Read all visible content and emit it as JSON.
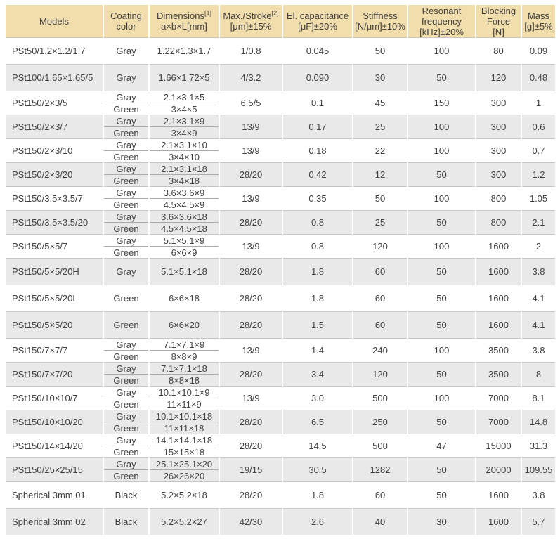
{
  "colors": {
    "header_bg": "#f2deac",
    "row_bg": "#ffffff",
    "row_alt_bg": "#e9e9e9",
    "text": "#414141",
    "group_line": "#c6c6c6",
    "subrow_line": "#aaaaaa"
  },
  "table": {
    "columns": [
      {
        "id": "models",
        "lines": [
          "Models"
        ]
      },
      {
        "id": "coating-color",
        "lines": [
          "Coating",
          "color"
        ]
      },
      {
        "id": "dimensions",
        "lines": [
          "Dimensions",
          "a×b×L[mm]"
        ],
        "sup": "[1]"
      },
      {
        "id": "max-stroke",
        "lines": [
          "Max./Stroke",
          "[μm]±15%"
        ],
        "sup": "[2]"
      },
      {
        "id": "el-capacitance",
        "lines": [
          "El. capacitance",
          "[μF]±20%"
        ]
      },
      {
        "id": "stiffness",
        "lines": [
          "Stiffness",
          "[N/μm]±10%"
        ]
      },
      {
        "id": "resonant-frequency",
        "lines": [
          "Resonant",
          "frequency",
          "[kHz]±20%"
        ]
      },
      {
        "id": "blocking-force",
        "lines": [
          "Blocking",
          "Force",
          "[N]"
        ]
      },
      {
        "id": "mass",
        "lines": [
          "Mass",
          "[g]±5%"
        ]
      }
    ],
    "rows": [
      {
        "model": "PSt50/1.2×1.2/1.7",
        "variants": [
          {
            "coating": "Gray",
            "dimensions": "1.22×1.3×1.7"
          }
        ],
        "stroke": "1/0.8",
        "capacitance": "0.045",
        "stiffness": "50",
        "frequency": "100",
        "force": "80",
        "mass": "0.09"
      },
      {
        "model": "PSt100/1.65×1.65/5",
        "variants": [
          {
            "coating": "Gray",
            "dimensions": "1.66×1.72×5"
          }
        ],
        "stroke": "4/3.2",
        "capacitance": "0.090",
        "stiffness": "30",
        "frequency": "50",
        "force": "120",
        "mass": "0.48"
      },
      {
        "model": "PSt150/2×3/5",
        "variants": [
          {
            "coating": "Gray",
            "dimensions": "2.1×3.1×5"
          },
          {
            "coating": "Green",
            "dimensions": "3×4×5"
          }
        ],
        "stroke": "6.5/5",
        "capacitance": "0.1",
        "stiffness": "45",
        "frequency": "150",
        "force": "300",
        "mass": "1"
      },
      {
        "model": "PSt150/2×3/7",
        "variants": [
          {
            "coating": "Gray",
            "dimensions": "2.1×3.1×9"
          },
          {
            "coating": "Green",
            "dimensions": "3×4×9"
          }
        ],
        "stroke": "13/9",
        "capacitance": "0.17",
        "stiffness": "25",
        "frequency": "100",
        "force": "300",
        "mass": "0.6"
      },
      {
        "model": "PSt150/2×3/10",
        "variants": [
          {
            "coating": "Gray",
            "dimensions": "2.1×3.1×10"
          },
          {
            "coating": "Green",
            "dimensions": "3×4×10"
          }
        ],
        "stroke": "13/9",
        "capacitance": "0.18",
        "stiffness": "22",
        "frequency": "100",
        "force": "300",
        "mass": "0.7"
      },
      {
        "model": "PSt150/2×3/20",
        "variants": [
          {
            "coating": "Gray",
            "dimensions": "2.1×3.1×18"
          },
          {
            "coating": "Green",
            "dimensions": "3×4×18"
          }
        ],
        "stroke": "28/20",
        "capacitance": "0.42",
        "stiffness": "12",
        "frequency": "50",
        "force": "300",
        "mass": "1.2"
      },
      {
        "model": "PSt150/3.5×3.5/7",
        "variants": [
          {
            "coating": "Gray",
            "dimensions": "3.6×3.6×9"
          },
          {
            "coating": "Green",
            "dimensions": "4.5×4.5×9"
          }
        ],
        "stroke": "13/9",
        "capacitance": "0.35",
        "stiffness": "50",
        "frequency": "100",
        "force": "800",
        "mass": "1.05"
      },
      {
        "model": "PSt150/3.5×3.5/20",
        "variants": [
          {
            "coating": "Gray",
            "dimensions": "3.6×3.6×18"
          },
          {
            "coating": "Green",
            "dimensions": "4.5×4.5×18"
          }
        ],
        "stroke": "28/20",
        "capacitance": "0.8",
        "stiffness": "25",
        "frequency": "50",
        "force": "800",
        "mass": "2.1"
      },
      {
        "model": "PSt150/5×5/7",
        "variants": [
          {
            "coating": "Gray",
            "dimensions": "5.1×5.1×9"
          },
          {
            "coating": "Green",
            "dimensions": "6×6×9"
          }
        ],
        "stroke": "13/9",
        "capacitance": "0.8",
        "stiffness": "120",
        "frequency": "100",
        "force": "1600",
        "mass": "2"
      },
      {
        "model": "PSt150/5×5/20H",
        "variants": [
          {
            "coating": "Gray",
            "dimensions": "5.1×5.1×18"
          }
        ],
        "stroke": "28/20",
        "capacitance": "1.8",
        "stiffness": "60",
        "frequency": "50",
        "force": "1600",
        "mass": "3.8"
      },
      {
        "model": "PSt150/5×5/20L",
        "variants": [
          {
            "coating": "Green",
            "dimensions": "6×6×18"
          }
        ],
        "stroke": "28/20",
        "capacitance": "1.8",
        "stiffness": "60",
        "frequency": "50",
        "force": "1600",
        "mass": "4.1"
      },
      {
        "model": "PSt150/5×5/20",
        "variants": [
          {
            "coating": "Green",
            "dimensions": "6×6×20"
          }
        ],
        "stroke": "28/20",
        "capacitance": "1.5",
        "stiffness": "60",
        "frequency": "50",
        "force": "1600",
        "mass": "4.1"
      },
      {
        "model": "PSt150/7×7/7",
        "variants": [
          {
            "coating": "Gray",
            "dimensions": "7.1×7.1×9"
          },
          {
            "coating": "Green",
            "dimensions": "8×8×9"
          }
        ],
        "stroke": "13/9",
        "capacitance": "1.4",
        "stiffness": "240",
        "frequency": "100",
        "force": "3500",
        "mass": "3.8"
      },
      {
        "model": "PSt150/7×7/20",
        "variants": [
          {
            "coating": "Gray",
            "dimensions": "7.1×7.1×18"
          },
          {
            "coating": "Green",
            "dimensions": "8×8×18"
          }
        ],
        "stroke": "28/20",
        "capacitance": "3.4",
        "stiffness": "120",
        "frequency": "50",
        "force": "3500",
        "mass": "8"
      },
      {
        "model": "PSt150/10×10/7",
        "variants": [
          {
            "coating": "Gray",
            "dimensions": "10.1×10.1×9"
          },
          {
            "coating": "Green",
            "dimensions": "11×11×9"
          }
        ],
        "stroke": "13/9",
        "capacitance": "3.0",
        "stiffness": "500",
        "frequency": "100",
        "force": "7000",
        "mass": "8.1"
      },
      {
        "model": "PSt150/10×10/20",
        "variants": [
          {
            "coating": "Gray",
            "dimensions": "10.1×10.1×18"
          },
          {
            "coating": "Green",
            "dimensions": "11×11×18"
          }
        ],
        "stroke": "28/20",
        "capacitance": "6.5",
        "stiffness": "250",
        "frequency": "50",
        "force": "7000",
        "mass": "14.8"
      },
      {
        "model": "PSt150/14×14/20",
        "variants": [
          {
            "coating": "Gray",
            "dimensions": "14.1×14.1×18"
          },
          {
            "coating": "Green",
            "dimensions": "15×15×18"
          }
        ],
        "stroke": "28/20",
        "capacitance": "14.5",
        "stiffness": "500",
        "frequency": "47",
        "force": "15000",
        "mass": "31.3"
      },
      {
        "model": "PSt150/25×25/15",
        "variants": [
          {
            "coating": "Gray",
            "dimensions": "25.1×25.1×20"
          },
          {
            "coating": "Green",
            "dimensions": "26×26×20"
          }
        ],
        "stroke": "19/15",
        "capacitance": "30.5",
        "stiffness": "1282",
        "frequency": "50",
        "force": "20000",
        "mass": "109.55"
      },
      {
        "model": "Spherical 3mm 01",
        "variants": [
          {
            "coating": "Black",
            "dimensions": "5.2×5.2×18"
          }
        ],
        "stroke": "28/20",
        "capacitance": "1.8",
        "stiffness": "60",
        "frequency": "50",
        "force": "1600",
        "mass": "3.8"
      },
      {
        "model": "Spherical 3mm 02",
        "variants": [
          {
            "coating": "Black",
            "dimensions": "5.2×5.2×27"
          }
        ],
        "stroke": "42/30",
        "capacitance": "2.6",
        "stiffness": "40",
        "frequency": "30",
        "force": "1600",
        "mass": "5.7"
      }
    ]
  }
}
